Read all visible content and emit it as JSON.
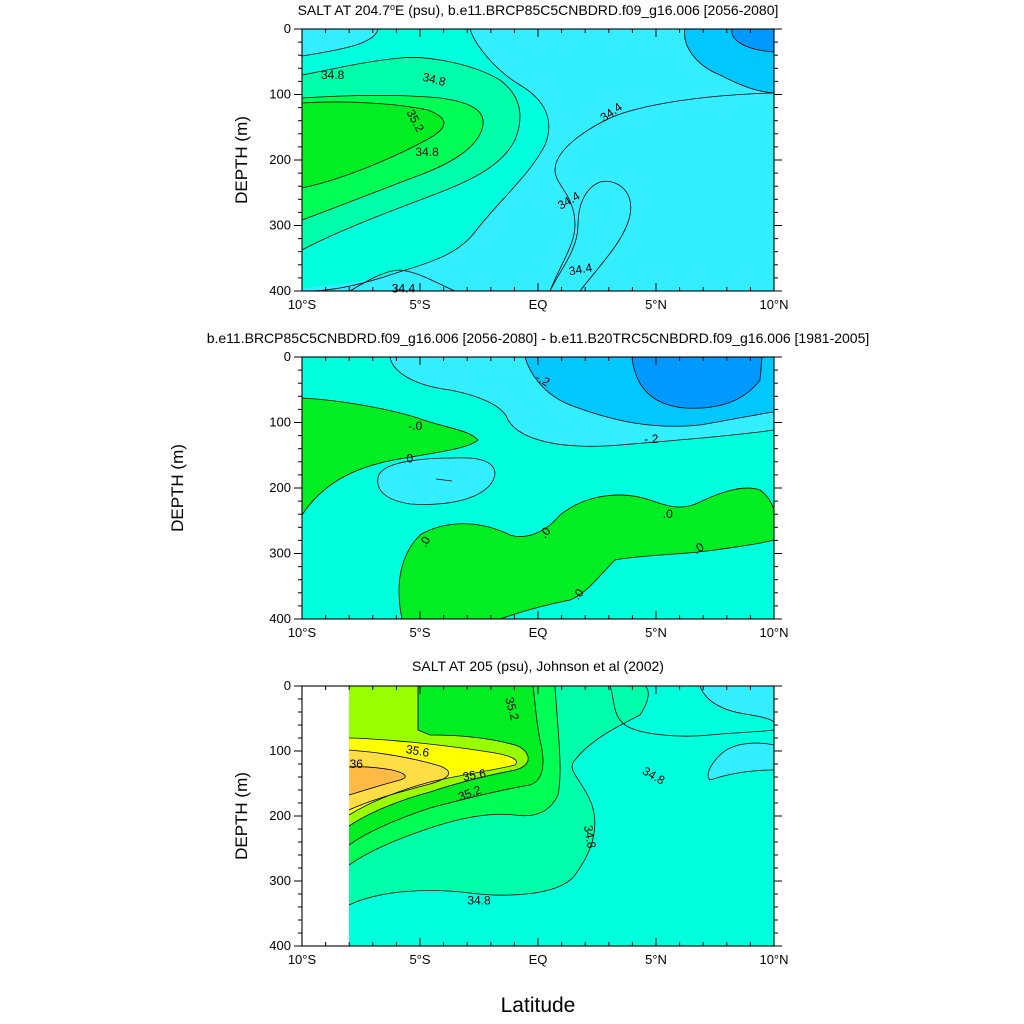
{
  "chart_data": [
    {
      "type": "contour",
      "title_pre": "SALT AT 204.7",
      "title_sup": "o",
      "title_post": "E (psu), b.e11.BRCP85C5CNBDRD.f09_g16.006 [2056-2080]",
      "ylabel": "DEPTH (m)",
      "xlim": [
        -10,
        10
      ],
      "ylim": [
        0,
        400
      ],
      "y_reversed": true,
      "x_ticks": [
        {
          "value": -10,
          "label": "10°S"
        },
        {
          "value": -5,
          "label": "5°S"
        },
        {
          "value": 0,
          "label": "EQ"
        },
        {
          "value": 5,
          "label": "5°N"
        },
        {
          "value": 10,
          "label": "10°N"
        }
      ],
      "y_ticks": [
        {
          "value": 0,
          "label": "0"
        },
        {
          "value": 100,
          "label": "100"
        },
        {
          "value": 200,
          "label": "200"
        },
        {
          "value": 300,
          "label": "300"
        },
        {
          "value": 400,
          "label": "400"
        }
      ],
      "contour_levels": [
        34.0,
        34.2,
        34.4,
        34.6,
        34.8,
        35.0,
        35.2
      ],
      "level_colors": {
        "lt_34_2": "#0099ff",
        "34_2_34_4": "#00c8ff",
        "34_4_34_6": "#33eeff",
        "34_6_34_8": "#00ffdd",
        "34_8_35_0": "#00ffaa",
        "35_0_35_2": "#00ff55",
        "gt_35_2": "#00ee22"
      },
      "contour_labels": [
        {
          "text": "34.8",
          "lon": -8.7,
          "depth": 70,
          "angle": 0
        },
        {
          "text": "34.8",
          "lon": -4.4,
          "depth": 77,
          "angle": 14
        },
        {
          "text": "35.2",
          "lon": -5.2,
          "depth": 140,
          "angle": 62
        },
        {
          "text": "34.8",
          "lon": -4.7,
          "depth": 188,
          "angle": 0
        },
        {
          "text": "34.4",
          "lon": 3.1,
          "depth": 127,
          "angle": -35
        },
        {
          "text": "34.4",
          "lon": 1.3,
          "depth": 262,
          "angle": -30
        },
        {
          "text": "34.4",
          "lon": 1.8,
          "depth": 367,
          "angle": -10
        },
        {
          "text": "34.4",
          "lon": -5.7,
          "depth": 396,
          "angle": 0
        }
      ]
    },
    {
      "type": "contour",
      "title": "b.e11.BRCP85C5CNBDRD.f09_g16.006 [2056-2080] - b.e11.B20TRC5CNBDRD.f09_g16.006 [1981-2005]",
      "ylabel": "DEPTH (m)",
      "xlim": [
        -10,
        10
      ],
      "ylim": [
        0,
        400
      ],
      "y_reversed": true,
      "x_ticks": [
        {
          "value": -10,
          "label": "10°S"
        },
        {
          "value": -5,
          "label": "5°S"
        },
        {
          "value": 0,
          "label": "EQ"
        },
        {
          "value": 5,
          "label": "5°N"
        },
        {
          "value": 10,
          "label": "10°N"
        }
      ],
      "y_ticks": [
        {
          "value": 0,
          "label": "0"
        },
        {
          "value": 100,
          "label": "100"
        },
        {
          "value": 200,
          "label": "200"
        },
        {
          "value": 300,
          "label": "300"
        },
        {
          "value": 400,
          "label": "400"
        }
      ],
      "contour_levels": [
        -0.4,
        -0.2,
        0.0
      ],
      "level_colors": {
        "lt_-0_4": "#0099ff",
        "-0_4_-0_2": "#00c8ff",
        "-0_2_0": "#33eeff",
        "0_0_2": "#00ffdd",
        "gt_0": "#00ee22"
      },
      "contour_labels": [
        {
          "text": "-.2",
          "lon": 0.2,
          "depth": 35,
          "angle": 30
        },
        {
          "text": "-.2",
          "lon": 4.8,
          "depth": 125,
          "angle": 0
        },
        {
          "text": "-.0",
          "lon": -5.2,
          "depth": 105,
          "angle": 0
        },
        {
          "text": ".0",
          "lon": -5.5,
          "depth": 155,
          "angle": 0
        },
        {
          "text": ".0",
          "lon": -4.8,
          "depth": 282,
          "angle": -60
        },
        {
          "text": ".0",
          "lon": 0.3,
          "depth": 268,
          "angle": -50
        },
        {
          "text": ".0",
          "lon": 5.5,
          "depth": 240,
          "angle": 0
        },
        {
          "text": ".0",
          "lon": 6.8,
          "depth": 292,
          "angle": -30
        },
        {
          "text": ".0",
          "lon": 1.7,
          "depth": 362,
          "angle": -50
        }
      ]
    },
    {
      "type": "contour",
      "title": "SALT AT 205 (psu), Johnson et al (2002)",
      "ylabel": "DEPTH (m)",
      "xlabel": "Latitude",
      "xlim": [
        -10,
        10
      ],
      "ylim": [
        0,
        400
      ],
      "y_reversed": true,
      "data_start_lon": -8,
      "x_ticks": [
        {
          "value": -10,
          "label": "10°S"
        },
        {
          "value": -5,
          "label": "5°S"
        },
        {
          "value": 0,
          "label": "EQ"
        },
        {
          "value": 5,
          "label": "5°N"
        },
        {
          "value": 10,
          "label": "10°N"
        }
      ],
      "y_ticks": [
        {
          "value": 0,
          "label": "0"
        },
        {
          "value": 100,
          "label": "100"
        },
        {
          "value": 200,
          "label": "200"
        },
        {
          "value": 300,
          "label": "300"
        },
        {
          "value": 400,
          "label": "400"
        }
      ],
      "contour_levels": [
        34.4,
        34.6,
        34.8,
        35.0,
        35.2,
        35.4,
        35.6,
        35.8,
        36.0
      ],
      "level_colors": {
        "34_4_34_6": "#33eeff",
        "34_6_34_8": "#00ffdd",
        "34_8_35_0": "#00ffaa",
        "35_0_35_2": "#00ff55",
        "35_2_35_4": "#00ee22",
        "35_4_35_6": "#99ff00",
        "35_6_35_8": "#ffff00",
        "35_8_36_0": "#ffdd44",
        "gt_36_0": "#ffbb44",
        "no_data": "#ffffff"
      },
      "contour_labels": [
        {
          "text": "35.2",
          "lon": -1.1,
          "depth": 35,
          "angle": 75
        },
        {
          "text": "35.6",
          "lon": -5.1,
          "depth": 100,
          "angle": 10
        },
        {
          "text": "36",
          "lon": -7.7,
          "depth": 120,
          "angle": 0
        },
        {
          "text": "35.6",
          "lon": -2.7,
          "depth": 137,
          "angle": -10
        },
        {
          "text": "35.2",
          "lon": -2.9,
          "depth": 165,
          "angle": -20
        },
        {
          "text": "34.8",
          "lon": 4.9,
          "depth": 138,
          "angle": 30
        },
        {
          "text": "34.8",
          "lon": 2.2,
          "depth": 232,
          "angle": 80
        },
        {
          "text": "34.8",
          "lon": -2.5,
          "depth": 330,
          "angle": 0
        }
      ]
    }
  ]
}
